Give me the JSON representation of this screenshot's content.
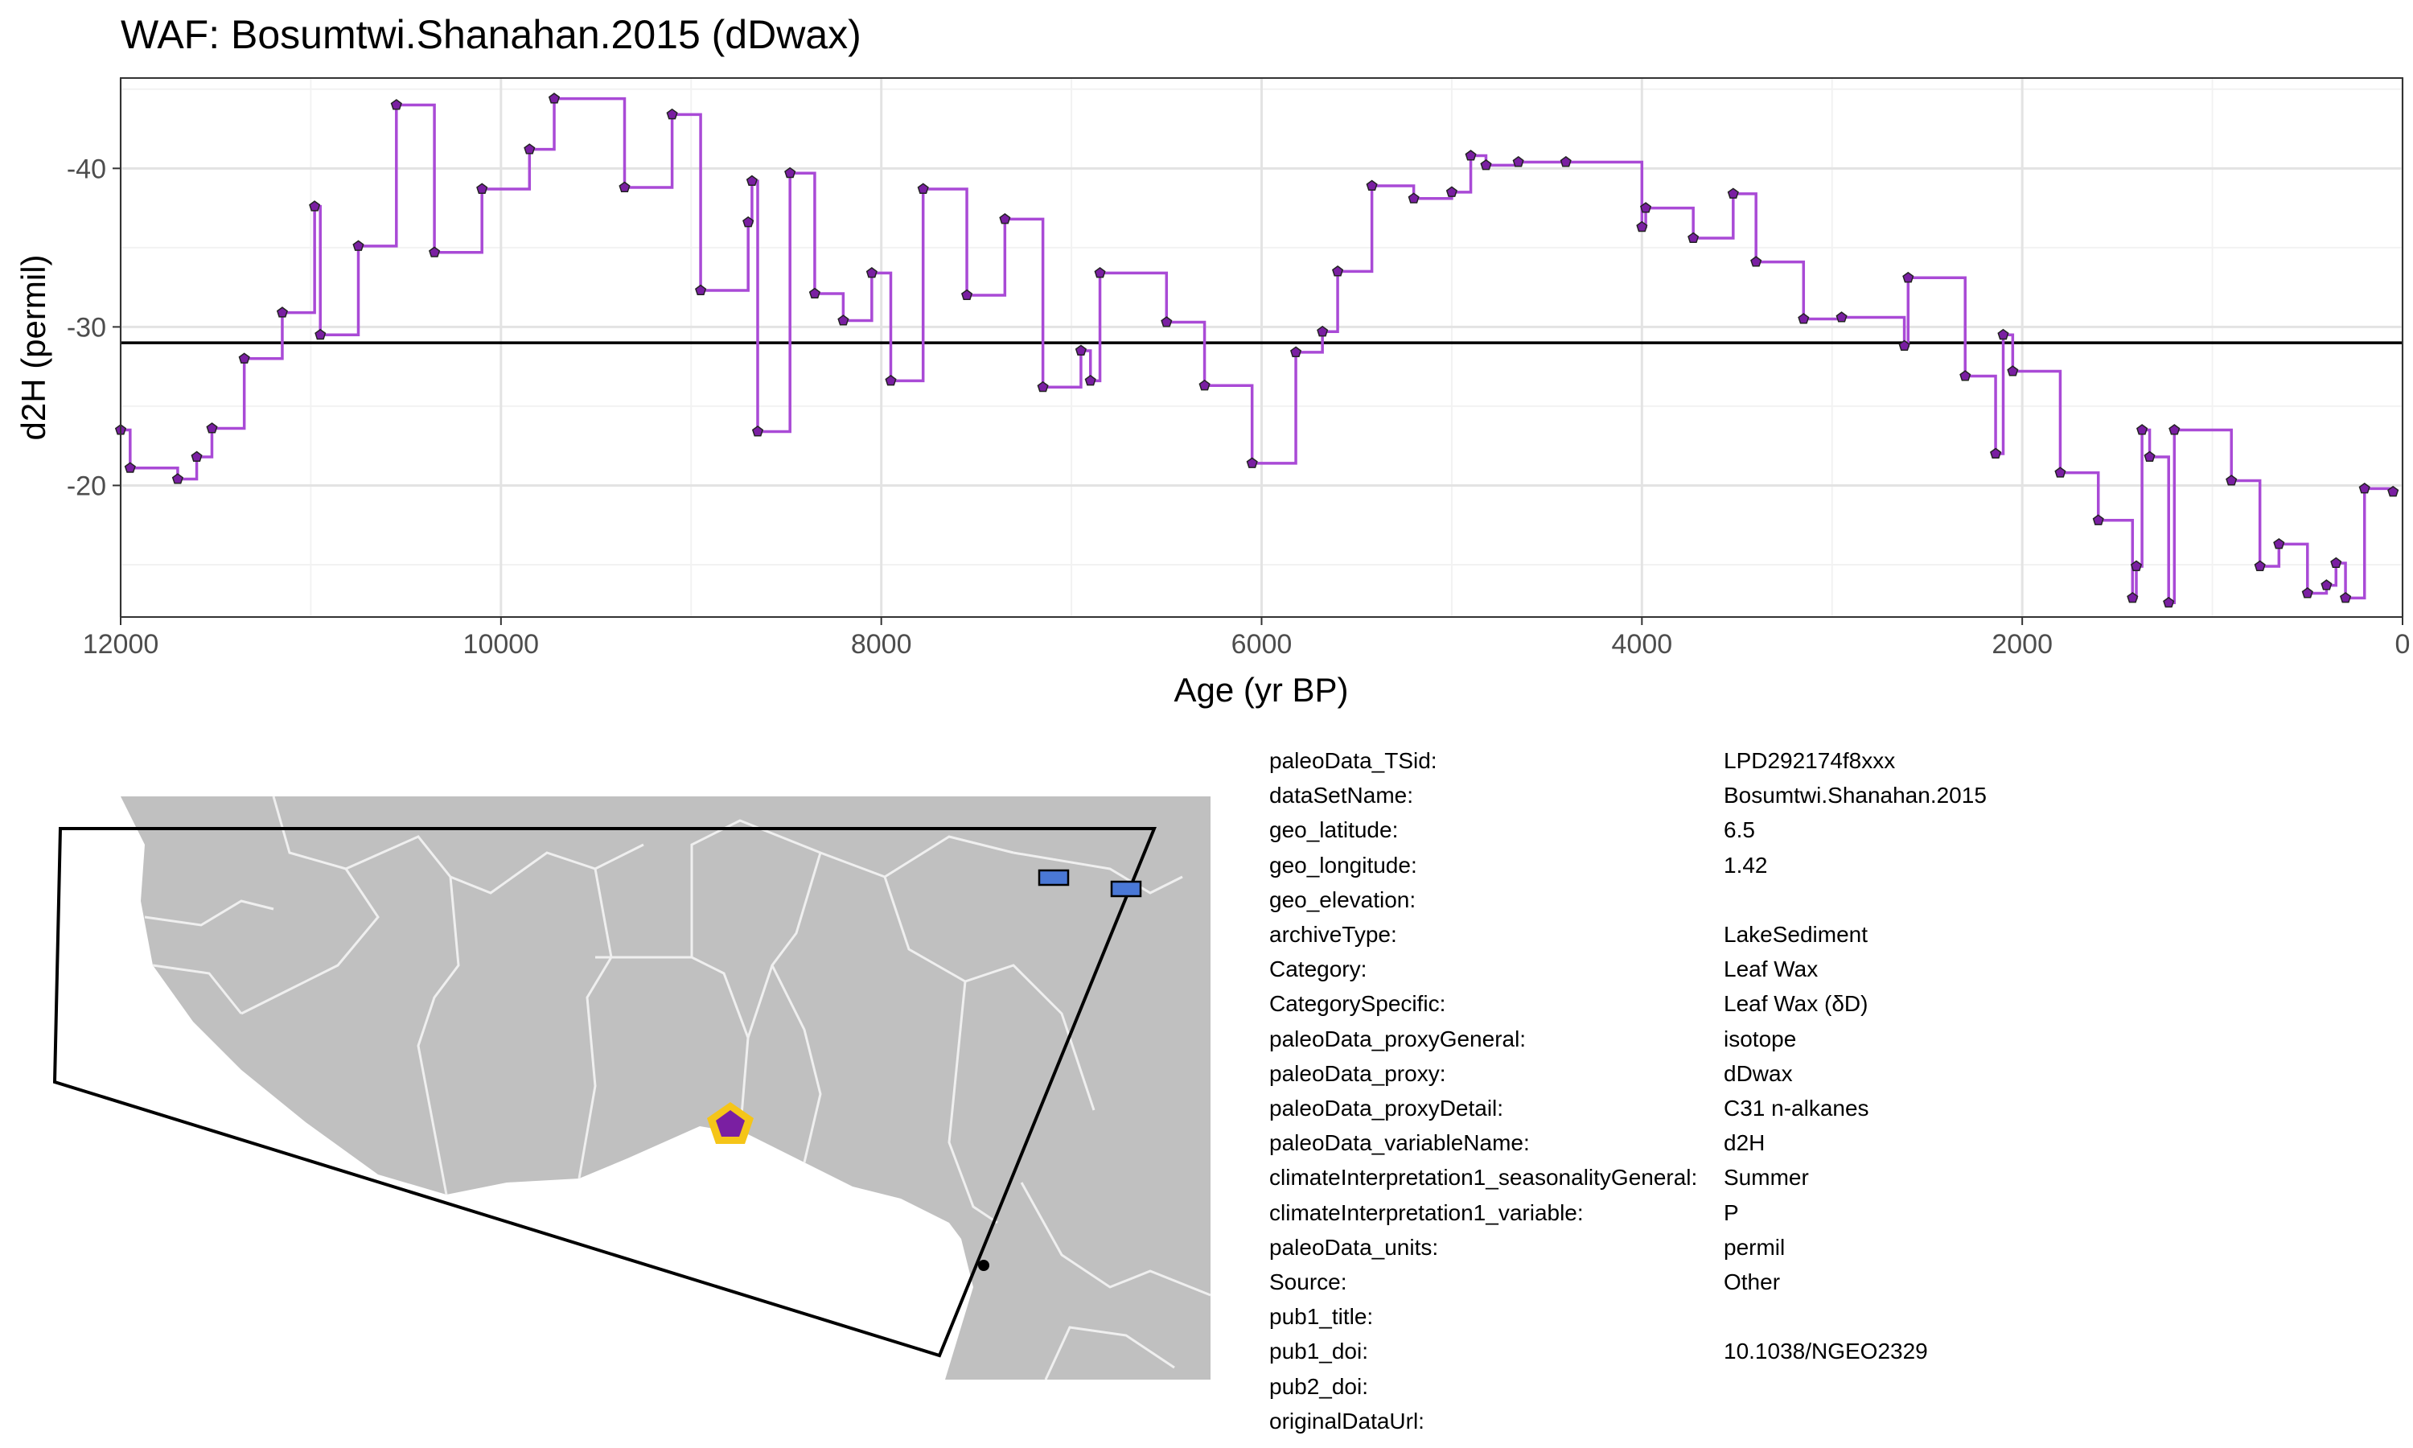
{
  "chart_data": {
    "type": "line",
    "title": "WAF: Bosumtwi.Shanahan.2015 (dDwax)",
    "xlabel": "Age (yr BP)",
    "ylabel": "d2H (permil)",
    "xlim": [
      12000,
      0
    ],
    "ylim": [
      -45.7,
      -11.7
    ],
    "y_reversed": true,
    "grid": true,
    "x_ticks": [
      12000,
      10000,
      8000,
      6000,
      4000,
      2000,
      0
    ],
    "y_ticks": [
      -40,
      -30,
      -20
    ],
    "reference_line": -29,
    "series": [
      {
        "step": true,
        "color": "#a94ad6",
        "marker_color": "#7a1fa2",
        "x": [
          12000,
          11950,
          11700,
          11600,
          11520,
          11350,
          11150,
          10980,
          10950,
          10750,
          10550,
          10350,
          10100,
          9850,
          9720,
          9350,
          9100,
          8950,
          8700,
          8680,
          8650,
          8480,
          8350,
          8200,
          8050,
          7950,
          7780,
          7550,
          7350,
          7150,
          6950,
          6900,
          6850,
          6500,
          6300,
          6050,
          5820,
          5680,
          5600,
          5420,
          5200,
          5000,
          4900,
          4820,
          4650,
          4400,
          4000,
          3980,
          3730,
          3520,
          3400,
          3150,
          2950,
          2620,
          2600,
          2300,
          2140,
          2100,
          2050,
          1800,
          1600,
          1420,
          1400,
          1370,
          1330,
          1230,
          1200,
          900,
          750,
          650,
          500,
          400,
          350,
          300,
          200,
          50
        ],
        "y": [
          -23.5,
          -21.1,
          -20.4,
          -21.8,
          -23.6,
          -28.0,
          -30.9,
          -37.6,
          -29.5,
          -35.1,
          -44.0,
          -34.7,
          -38.7,
          -41.2,
          -44.4,
          -38.8,
          -43.4,
          -32.3,
          -36.6,
          -39.2,
          -23.4,
          -39.7,
          -32.1,
          -30.4,
          -33.4,
          -26.6,
          -38.7,
          -32.0,
          -36.8,
          -26.2,
          -28.5,
          -26.6,
          -33.4,
          -30.3,
          -26.3,
          -21.4,
          -28.4,
          -29.7,
          -33.5,
          -38.9,
          -38.1,
          -38.5,
          -40.8,
          -40.2,
          -40.4,
          -40.4,
          -36.3,
          -37.5,
          -35.6,
          -38.4,
          -34.1,
          -30.5,
          -30.6,
          -28.8,
          -33.1,
          -26.9,
          -22.0,
          -29.5,
          -27.2,
          -20.8,
          -17.8,
          -12.9,
          -14.9,
          -23.5,
          -21.8,
          -12.6,
          -23.5,
          -20.3,
          -14.9,
          -16.3,
          -13.2,
          -13.7,
          -15.1,
          -12.9,
          -19.8,
          -19.6
        ]
      }
    ]
  },
  "map": {
    "site_latitude": 6.5,
    "site_longitude": 1.42,
    "land_color": "#c0c0c0",
    "border_color": "#efefef",
    "site_marker_fill": "#7a1fa2",
    "site_marker_ring": "#f5c518",
    "other_site_color": "#4a78d6"
  },
  "metadata": [
    {
      "key": "paleoData_TSid:",
      "value": "LPD292174f8xxx"
    },
    {
      "key": "dataSetName:",
      "value": "Bosumtwi.Shanahan.2015"
    },
    {
      "key": "geo_latitude:",
      "value": "6.5"
    },
    {
      "key": "geo_longitude:",
      "value": "1.42"
    },
    {
      "key": "geo_elevation:",
      "value": ""
    },
    {
      "key": "archiveType:",
      "value": "LakeSediment"
    },
    {
      "key": "Category:",
      "value": "Leaf Wax"
    },
    {
      "key": "CategorySpecific:",
      "value": "Leaf Wax (δD)"
    },
    {
      "key": "paleoData_proxyGeneral:",
      "value": "isotope"
    },
    {
      "key": "paleoData_proxy:",
      "value": "dDwax"
    },
    {
      "key": "paleoData_proxyDetail:",
      "value": "C31 n-alkanes"
    },
    {
      "key": "paleoData_variableName:",
      "value": "d2H"
    },
    {
      "key": "climateInterpretation1_seasonalityGeneral:",
      "value": "Summer"
    },
    {
      "key": "climateInterpretation1_variable:",
      "value": "P"
    },
    {
      "key": "paleoData_units:",
      "value": "permil"
    },
    {
      "key": "Source:",
      "value": "Other"
    },
    {
      "key": "pub1_title:",
      "value": ""
    },
    {
      "key": "pub1_doi:",
      "value": "10.1038/NGEO2329"
    },
    {
      "key": "pub2_doi:",
      "value": ""
    },
    {
      "key": "originalDataUrl:",
      "value": ""
    }
  ]
}
